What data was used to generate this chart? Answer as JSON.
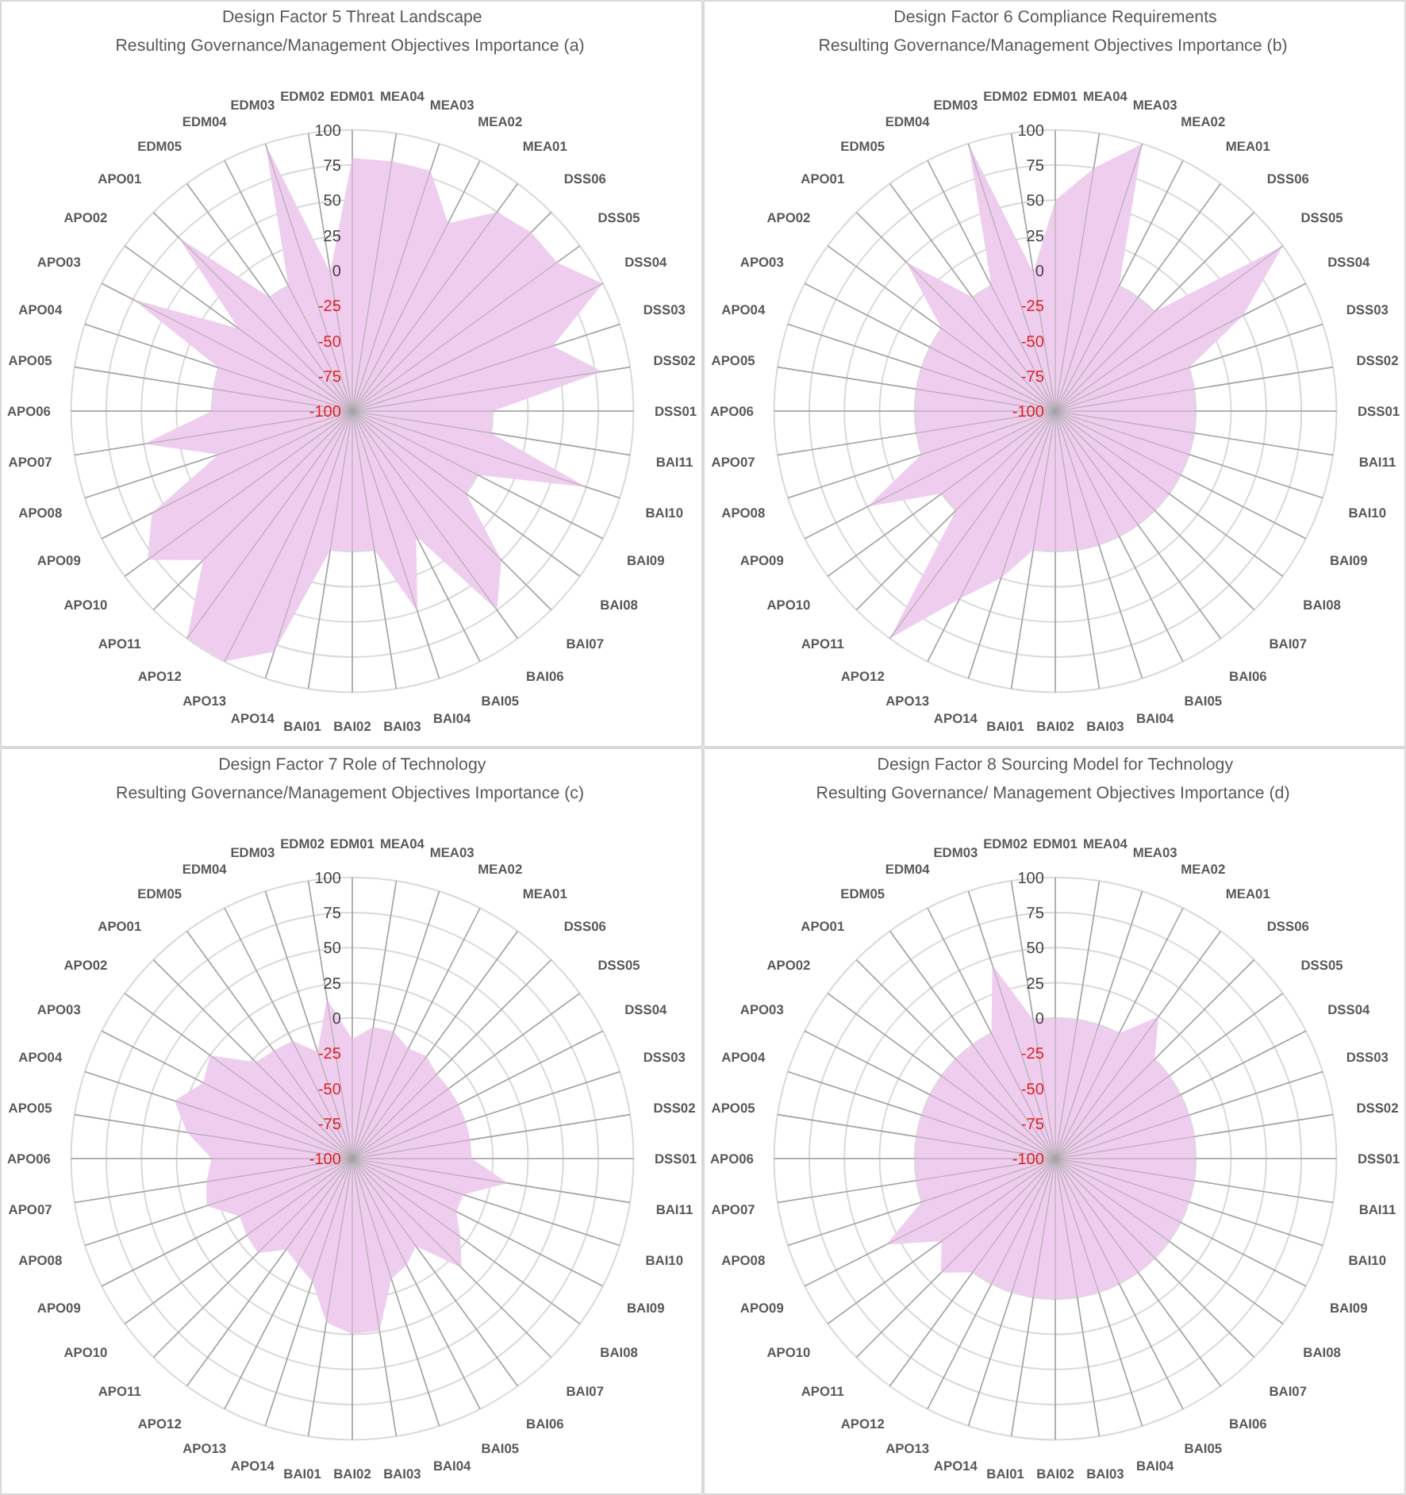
{
  "chart_data": [
    {
      "type": "radar",
      "title": "Design Factor 5 Threat Landscape",
      "subtitle": "Resulting Governance/Management  Objectives Importance (a)",
      "categories": [
        "EDM01",
        "MEA04",
        "MEA03",
        "MEA02",
        "MEA01",
        "DSS06",
        "DSS05",
        "DSS04",
        "DSS03",
        "DSS02",
        "DSS01",
        "BAI11",
        "BAI10",
        "BAI09",
        "BAI08",
        "BAI07",
        "BAI06",
        "BAI05",
        "BAI04",
        "BAI03",
        "BAI02",
        "BAI01",
        "APO14",
        "APO13",
        "APO12",
        "APO11",
        "APO10",
        "APO09",
        "APO08",
        "APO07",
        "APO06",
        "APO05",
        "APO04",
        "APO03",
        "APO02",
        "APO01",
        "EDM05",
        "EDM04",
        "EDM03",
        "EDM02"
      ],
      "series": [
        {
          "color": "#efcdee",
          "values": [
            80,
            80,
            80,
            50,
            75,
            80,
            80,
            100,
            50,
            80,
            0,
            0,
            75,
            0,
            0,
            50,
            75,
            0,
            50,
            0,
            0,
            0,
            80,
            100,
            100,
            50,
            80,
            60,
            0,
            50,
            0,
            0,
            0,
            75,
            0,
            75,
            0,
            0,
            100,
            0
          ]
        }
      ],
      "ylim": [
        -100,
        100
      ],
      "yticks": [
        -100,
        -75,
        -50,
        -25,
        0,
        25,
        50,
        75,
        100
      ],
      "grid": true
    },
    {
      "type": "radar",
      "title": "Design Factor 6 Compliance Requirements",
      "subtitle": "Resulting Governance/Management  Objectives Importance (b)",
      "categories": [
        "EDM01",
        "MEA04",
        "MEA03",
        "MEA02",
        "MEA01",
        "DSS06",
        "DSS05",
        "DSS04",
        "DSS03",
        "DSS02",
        "DSS01",
        "BAI11",
        "BAI10",
        "BAI09",
        "BAI08",
        "BAI07",
        "BAI06",
        "BAI05",
        "BAI04",
        "BAI03",
        "BAI02",
        "BAI01",
        "APO14",
        "APO13",
        "APO12",
        "APO11",
        "APO10",
        "APO09",
        "APO08",
        "APO07",
        "APO06",
        "APO05",
        "APO04",
        "APO03",
        "APO02",
        "APO01",
        "EDM05",
        "EDM04",
        "EDM03",
        "EDM02"
      ],
      "series": [
        {
          "color": "#efcdee",
          "values": [
            50,
            75,
            100,
            0,
            0,
            0,
            100,
            50,
            0,
            0,
            0,
            0,
            0,
            0,
            0,
            0,
            0,
            0,
            0,
            0,
            0,
            0,
            25,
            50,
            100,
            0,
            0,
            50,
            0,
            0,
            0,
            0,
            0,
            0,
            0,
            50,
            0,
            0,
            100,
            0
          ]
        }
      ],
      "ylim": [
        -100,
        100
      ],
      "yticks": [
        -100,
        -75,
        -50,
        -25,
        0,
        25,
        50,
        75,
        100
      ],
      "grid": true
    },
    {
      "type": "radar",
      "title": "Design Factor 7 Role of Technology",
      "subtitle": "Resulting Governance/Management  Objectives Importance (c)",
      "categories": [
        "EDM01",
        "MEA04",
        "MEA03",
        "MEA02",
        "MEA01",
        "DSS06",
        "DSS05",
        "DSS04",
        "DSS03",
        "DSS02",
        "DSS01",
        "BAI11",
        "BAI10",
        "BAI09",
        "BAI08",
        "BAI07",
        "BAI06",
        "BAI05",
        "BAI04",
        "BAI03",
        "BAI02",
        "BAI01",
        "APO14",
        "APO13",
        "APO12",
        "APO11",
        "APO10",
        "APO09",
        "APO08",
        "APO07",
        "APO06",
        "APO05",
        "APO04",
        "APO03",
        "APO02",
        "APO01",
        "EDM05",
        "EDM04",
        "EDM03",
        "EDM02"
      ],
      "series": [
        {
          "color": "#efcdee",
          "values": [
            -15,
            -5,
            -5,
            -12,
            -10,
            -15,
            -15,
            -15,
            -15,
            -15,
            -15,
            12,
            -17,
            -17,
            -5,
            10,
            -23,
            -15,
            -10,
            24,
            25,
            18,
            -8,
            -15,
            -20,
            -5,
            -7,
            -10,
            9,
            5,
            0,
            19,
            33,
            19,
            25,
            -3,
            -5,
            -6,
            -20,
            15
          ]
        }
      ],
      "ylim": [
        -100,
        100
      ],
      "yticks": [
        -100,
        -75,
        -50,
        -25,
        0,
        25,
        50,
        75,
        100
      ],
      "grid": true
    },
    {
      "type": "radar",
      "title": "Design Factor 8 Sourcing Model for Technology",
      "subtitle": "Resulting Governance/ Management  Objectives Importance (d)",
      "categories": [
        "EDM01",
        "MEA04",
        "MEA03",
        "MEA02",
        "MEA01",
        "DSS06",
        "DSS05",
        "DSS04",
        "DSS03",
        "DSS02",
        "DSS01",
        "BAI11",
        "BAI10",
        "BAI09",
        "BAI08",
        "BAI07",
        "BAI06",
        "BAI05",
        "BAI04",
        "BAI03",
        "BAI02",
        "BAI01",
        "APO14",
        "APO13",
        "APO12",
        "APO11",
        "APO10",
        "APO09",
        "APO08",
        "APO07",
        "APO06",
        "APO05",
        "APO04",
        "APO03",
        "APO02",
        "APO01",
        "EDM05",
        "EDM04",
        "EDM03",
        "EDM02"
      ],
      "series": [
        {
          "color": "#efcdee",
          "values": [
            0,
            0,
            0,
            0,
            25,
            0,
            0,
            0,
            0,
            0,
            0,
            0,
            0,
            0,
            0,
            0,
            0,
            0,
            0,
            0,
            0,
            0,
            0,
            0,
            0,
            15,
            0,
            35,
            0,
            0,
            0,
            0,
            0,
            0,
            0,
            0,
            0,
            0,
            45,
            0
          ]
        }
      ],
      "ylim": [
        -100,
        100
      ],
      "yticks": [
        -100,
        -75,
        -50,
        -25,
        0,
        25,
        50,
        75,
        100
      ],
      "grid": true
    }
  ]
}
